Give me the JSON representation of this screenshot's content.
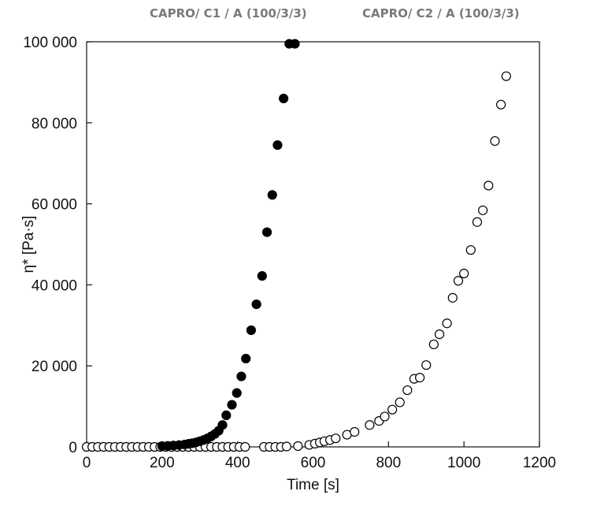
{
  "chart_data": {
    "type": "scatter",
    "xlabel": "Time [s]",
    "ylabel": "η* [Pa·s]",
    "xlim": [
      0,
      1200
    ],
    "ylim": [
      0,
      100000
    ],
    "xticks": [
      0,
      200,
      400,
      600,
      800,
      1000,
      1200
    ],
    "xtick_labels": [
      "0",
      "200",
      "400",
      "600",
      "800",
      "1000",
      "1200"
    ],
    "yticks": [
      0,
      20000,
      40000,
      60000,
      80000,
      100000
    ],
    "ytick_labels": [
      "0",
      "20 000",
      "40 000",
      "60 000",
      "80 000",
      "100 000"
    ],
    "grid": false,
    "series": [
      {
        "name": "CAPRO/ C1 / A (100/3/3)",
        "marker": "filled-circle",
        "color": "#000000",
        "x": [
          200,
          215,
          230,
          245,
          260,
          270,
          280,
          290,
          300,
          310,
          320,
          330,
          340,
          350,
          360,
          370,
          385,
          398,
          410,
          422,
          436,
          450,
          465,
          478,
          492,
          506,
          522,
          537,
          552
        ],
        "y": [
          200,
          250,
          350,
          450,
          600,
          750,
          900,
          1100,
          1400,
          1700,
          2100,
          2600,
          3200,
          4000,
          5400,
          7800,
          10400,
          13300,
          17400,
          21800,
          28800,
          35200,
          42200,
          53000,
          62200,
          74500,
          86000,
          99500,
          99500
        ]
      },
      {
        "name": "CAPRO/ C2 / A (100/3/3)",
        "marker": "open-circle",
        "color": "#000000",
        "x": [
          0,
          15,
          30,
          45,
          60,
          75,
          90,
          105,
          120,
          135,
          150,
          165,
          180,
          195,
          210,
          225,
          240,
          255,
          270,
          285,
          300,
          315,
          330,
          345,
          360,
          375,
          390,
          405,
          420,
          470,
          485,
          500,
          515,
          530,
          560,
          590,
          605,
          618,
          630,
          645,
          660,
          690,
          710,
          750,
          775,
          790,
          810,
          830,
          850,
          868,
          883,
          900,
          920,
          935,
          955,
          970,
          985,
          1000,
          1018,
          1035,
          1050,
          1065,
          1082,
          1098,
          1112
        ],
        "y": [
          0,
          0,
          0,
          0,
          0,
          0,
          0,
          0,
          0,
          0,
          0,
          0,
          0,
          0,
          0,
          0,
          0,
          0,
          0,
          0,
          0,
          0,
          0,
          0,
          0,
          0,
          0,
          0,
          0,
          0,
          0,
          0,
          0,
          100,
          200,
          500,
          800,
          1100,
          1400,
          1700,
          2100,
          3000,
          3700,
          5400,
          6400,
          7500,
          9200,
          11000,
          14000,
          16800,
          17100,
          20200,
          25300,
          27800,
          30500,
          36800,
          41000,
          42800,
          48600,
          55500,
          58400,
          64500,
          75500,
          84500,
          91500
        ]
      }
    ]
  }
}
